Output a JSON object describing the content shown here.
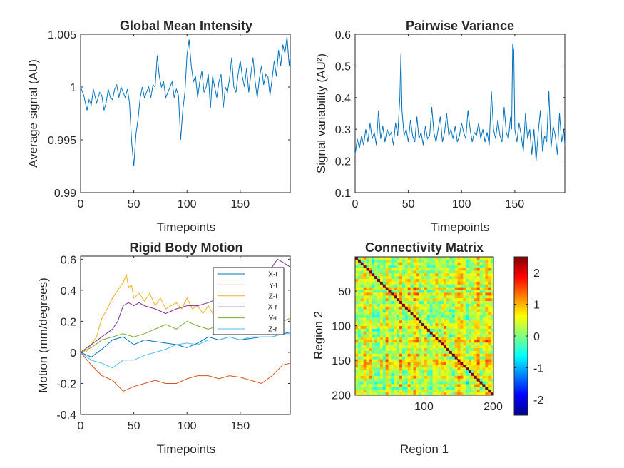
{
  "figure": {
    "background": "#ffffff",
    "axis_color": "#262626"
  },
  "chart_data": [
    {
      "id": "global",
      "type": "line",
      "title": "Global Mean Intensity",
      "xlabel": "Timepoints",
      "ylabel": "Average signal (AU)",
      "xlim": [
        0,
        197
      ],
      "ylim": [
        0.99,
        1.005
      ],
      "xticks": [
        0,
        50,
        100,
        150
      ],
      "yticks": [
        0.99,
        0.995,
        1,
        1.005
      ],
      "ytick_labels": [
        "0.99",
        "0.995",
        "1",
        "1.005"
      ],
      "color": "#0072BD",
      "series": [
        {
          "x": [
            0,
            3,
            6,
            8,
            10,
            12,
            15,
            18,
            20,
            22,
            24,
            26,
            28,
            30,
            32,
            34,
            36,
            38,
            40,
            42,
            44,
            46,
            48,
            50,
            52,
            54,
            56,
            58,
            60,
            62,
            64,
            66,
            68,
            70,
            72,
            74,
            76,
            78,
            80,
            82,
            84,
            86,
            88,
            90,
            92,
            94,
            96,
            98,
            100,
            102,
            104,
            106,
            108,
            110,
            112,
            114,
            116,
            118,
            120,
            122,
            124,
            126,
            128,
            130,
            132,
            134,
            136,
            138,
            140,
            142,
            144,
            146,
            148,
            150,
            152,
            154,
            156,
            158,
            160,
            162,
            164,
            166,
            168,
            170,
            172,
            174,
            176,
            178,
            180,
            182,
            184,
            186,
            188,
            190,
            192,
            194,
            196,
            197
          ],
          "values": [
            1.0,
            0.9992,
            0.9978,
            0.9988,
            0.9983,
            0.9998,
            0.9985,
            0.9995,
            0.9992,
            0.9978,
            0.9985,
            0.9998,
            0.999,
            0.9988,
            0.9998,
            1.0002,
            0.999,
            1.0,
            0.9995,
            0.999,
            0.9998,
            0.9985,
            0.9948,
            0.9925,
            0.9955,
            0.997,
            0.999,
            1.0,
            0.999,
            0.9995,
            1.0,
            0.999,
            1.0002,
            1.0,
            1.003,
            1.001,
            1.0,
            1.0005,
            0.999,
            0.9995,
            1.0,
            1.0005,
            0.999,
            0.9998,
            0.9992,
            0.995,
            0.9978,
            0.9995,
            1.003,
            1.0045,
            1.002,
            1.0005,
            1.001,
            0.999,
            1.0005,
            1.0015,
            0.9995,
            1.0,
            1.0012,
            0.998,
            1.001,
            1.0,
            0.999,
            1.0005,
            1.0012,
            0.998,
            1.0,
            0.9995,
            1.0008,
            1.0028,
            1.0,
            0.9995,
            1.0012,
            1.0025,
            1.001,
            1.0,
            1.0018,
            0.9995,
            1.0012,
            1.0028,
            1.0005,
            0.999,
            1.0008,
            1.002,
            1.0002,
            1.0012,
            1.001,
            0.9992,
            1.0008,
            1.0025,
            1.001,
            1.0035,
            1.002,
            1.004,
            1.0032,
            1.0048,
            1.002,
            1.003
          ]
        }
      ]
    },
    {
      "id": "variance",
      "type": "line",
      "title": "Pairwise Variance",
      "xlabel": "Timepoints",
      "ylabel": "Signal variability (AU²)",
      "xlim": [
        0,
        197
      ],
      "ylim": [
        0.1,
        0.6
      ],
      "xticks": [
        0,
        50,
        100,
        150
      ],
      "yticks": [
        0.1,
        0.2,
        0.3,
        0.4,
        0.5,
        0.6
      ],
      "ytick_labels": [
        "0.1",
        "0.2",
        "0.3",
        "0.4",
        "0.5",
        "0.6"
      ],
      "color": "#0072BD",
      "series": [
        {
          "x": [
            0,
            2,
            4,
            6,
            8,
            10,
            12,
            14,
            16,
            18,
            20,
            22,
            24,
            26,
            28,
            30,
            32,
            34,
            36,
            38,
            40,
            42,
            43,
            44,
            46,
            48,
            50,
            52,
            54,
            56,
            58,
            60,
            62,
            64,
            66,
            68,
            70,
            72,
            74,
            76,
            78,
            80,
            82,
            84,
            86,
            88,
            90,
            92,
            94,
            96,
            98,
            100,
            102,
            104,
            106,
            108,
            110,
            112,
            114,
            116,
            118,
            120,
            122,
            124,
            126,
            128,
            130,
            132,
            134,
            136,
            138,
            140,
            142,
            144,
            146,
            147,
            148,
            149,
            150,
            152,
            154,
            156,
            158,
            160,
            162,
            164,
            166,
            168,
            170,
            172,
            174,
            176,
            178,
            180,
            182,
            184,
            186,
            188,
            190,
            192,
            194,
            196,
            197
          ],
          "values": [
            0.22,
            0.27,
            0.24,
            0.28,
            0.25,
            0.3,
            0.26,
            0.32,
            0.27,
            0.29,
            0.25,
            0.36,
            0.27,
            0.31,
            0.26,
            0.3,
            0.28,
            0.29,
            0.25,
            0.32,
            0.28,
            0.4,
            0.54,
            0.36,
            0.28,
            0.3,
            0.26,
            0.33,
            0.28,
            0.26,
            0.34,
            0.27,
            0.29,
            0.25,
            0.31,
            0.27,
            0.28,
            0.37,
            0.29,
            0.26,
            0.3,
            0.34,
            0.26,
            0.29,
            0.35,
            0.28,
            0.3,
            0.27,
            0.31,
            0.26,
            0.28,
            0.32,
            0.29,
            0.27,
            0.36,
            0.3,
            0.26,
            0.29,
            0.28,
            0.32,
            0.27,
            0.3,
            0.26,
            0.29,
            0.25,
            0.42,
            0.3,
            0.27,
            0.33,
            0.28,
            0.26,
            0.37,
            0.29,
            0.27,
            0.34,
            0.3,
            0.57,
            0.55,
            0.3,
            0.26,
            0.32,
            0.28,
            0.23,
            0.35,
            0.27,
            0.3,
            0.22,
            0.3,
            0.2,
            0.29,
            0.36,
            0.23,
            0.28,
            0.26,
            0.42,
            0.24,
            0.31,
            0.28,
            0.22,
            0.35,
            0.26,
            0.3,
            0.25
          ]
        }
      ]
    },
    {
      "id": "motion",
      "type": "line",
      "title": "Rigid Body Motion",
      "xlabel": "Timepoints",
      "ylabel": "Motion (mm/degrees)",
      "xlim": [
        0,
        197
      ],
      "ylim": [
        -0.4,
        0.62
      ],
      "xticks": [
        0,
        50,
        100,
        150
      ],
      "yticks": [
        -0.4,
        -0.2,
        0,
        0.2,
        0.4,
        0.6
      ],
      "ytick_labels": [
        "-0.4",
        "-0.2",
        "0",
        "0.2",
        "0.4",
        "0.6"
      ],
      "legend_position": "top-right",
      "series": [
        {
          "name": "X-t",
          "color": "#0072BD",
          "x": [
            0,
            10,
            20,
            30,
            40,
            50,
            60,
            70,
            80,
            90,
            100,
            110,
            120,
            130,
            140,
            150,
            160,
            170,
            180,
            190,
            197
          ],
          "values": [
            0.0,
            -0.03,
            0.02,
            0.08,
            0.1,
            0.05,
            0.08,
            0.07,
            0.06,
            0.05,
            0.03,
            0.06,
            0.1,
            0.08,
            0.1,
            0.08,
            0.09,
            0.1,
            0.1,
            0.12,
            0.13
          ]
        },
        {
          "name": "Y-t",
          "color": "#D95319",
          "x": [
            0,
            10,
            20,
            30,
            40,
            50,
            60,
            70,
            80,
            90,
            100,
            110,
            120,
            130,
            140,
            150,
            160,
            170,
            180,
            190,
            197
          ],
          "values": [
            0.0,
            -0.08,
            -0.15,
            -0.18,
            -0.25,
            -0.22,
            -0.2,
            -0.18,
            -0.2,
            -0.2,
            -0.17,
            -0.15,
            -0.15,
            -0.17,
            -0.15,
            -0.16,
            -0.18,
            -0.2,
            -0.15,
            -0.08,
            -0.07
          ]
        },
        {
          "name": "Z-t",
          "color": "#EDB120",
          "x": [
            0,
            5,
            10,
            15,
            20,
            25,
            30,
            35,
            40,
            43,
            45,
            48,
            50,
            55,
            60,
            65,
            70,
            75,
            80,
            85,
            90,
            95,
            100,
            105,
            110,
            115,
            120,
            125,
            130,
            135
          ],
          "values": [
            0.02,
            0.0,
            0.05,
            0.1,
            0.22,
            0.28,
            0.35,
            0.4,
            0.45,
            0.5,
            0.42,
            0.43,
            0.35,
            0.38,
            0.33,
            0.38,
            0.3,
            0.35,
            0.28,
            0.3,
            0.32,
            0.28,
            0.35,
            0.28,
            0.3,
            0.25,
            0.3,
            0.24,
            0.26,
            0.27
          ]
        },
        {
          "name": "X-r",
          "color": "#7E2F8E",
          "x": [
            0,
            10,
            20,
            30,
            35,
            40,
            45,
            50,
            55,
            60,
            70,
            80,
            90,
            100,
            110,
            120,
            130,
            140,
            150,
            160,
            170,
            180,
            185,
            190,
            197
          ],
          "values": [
            0.0,
            0.05,
            0.1,
            0.15,
            0.2,
            0.3,
            0.32,
            0.3,
            0.32,
            0.3,
            0.28,
            0.25,
            0.28,
            0.3,
            0.3,
            0.32,
            0.35,
            0.38,
            0.4,
            0.45,
            0.5,
            0.55,
            0.6,
            0.58,
            0.55
          ]
        },
        {
          "name": "Y-r",
          "color": "#77AC30",
          "x": [
            0,
            10,
            20,
            30,
            40,
            50,
            60,
            70,
            80,
            90,
            100,
            110,
            120,
            130,
            140,
            150,
            160,
            170,
            180,
            190,
            197
          ],
          "values": [
            0.0,
            0.03,
            0.08,
            0.1,
            0.12,
            0.1,
            0.12,
            0.15,
            0.18,
            0.15,
            0.2,
            0.17,
            0.15,
            0.17,
            0.15,
            0.18,
            0.2,
            0.18,
            0.17,
            0.2,
            0.22
          ]
        },
        {
          "name": "Z-r",
          "color": "#4DBEEE",
          "x": [
            0,
            10,
            20,
            30,
            40,
            50,
            60,
            70,
            80,
            90,
            100,
            110,
            120,
            130,
            140,
            150,
            160,
            170,
            180,
            190,
            197
          ],
          "values": [
            0.0,
            -0.05,
            -0.07,
            -0.1,
            -0.05,
            -0.05,
            -0.02,
            0.0,
            0.02,
            0.05,
            0.06,
            0.05,
            0.08,
            0.08,
            0.1,
            0.08,
            0.1,
            0.1,
            0.1,
            0.12,
            0.12
          ]
        }
      ]
    },
    {
      "id": "connectivity",
      "type": "heatmap",
      "title": "Connectivity Matrix",
      "xlabel": "Region 1",
      "ylabel": "Region 2",
      "size": 200,
      "xticks": [
        100,
        200
      ],
      "yticks": [
        50,
        100,
        150,
        200
      ],
      "clim": [
        -2.5,
        2.5
      ],
      "colormap": "jet",
      "colorbar_ticks": [
        -2,
        -1,
        0,
        1,
        2
      ],
      "colorbar_tick_labels": [
        "-2",
        "-1",
        "0",
        "1",
        "2"
      ]
    }
  ]
}
